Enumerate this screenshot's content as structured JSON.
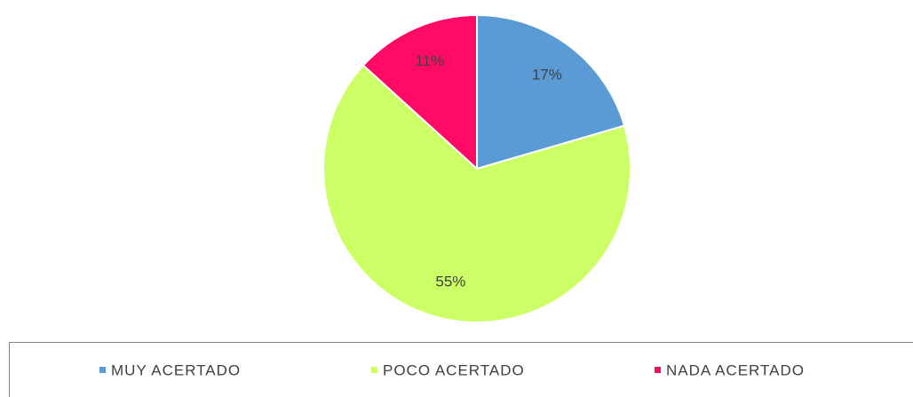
{
  "chart_data": {
    "type": "pie",
    "categories": [
      "MUY ACERTADO",
      "POCO ACERTADO",
      "NADA ACERTADO"
    ],
    "values": [
      17,
      55,
      11
    ],
    "value_labels": [
      "17%",
      "55%",
      "11%"
    ],
    "colors": [
      "#5b9bd5",
      "#ccff66",
      "#ff0a64"
    ],
    "legend": "bottom"
  }
}
